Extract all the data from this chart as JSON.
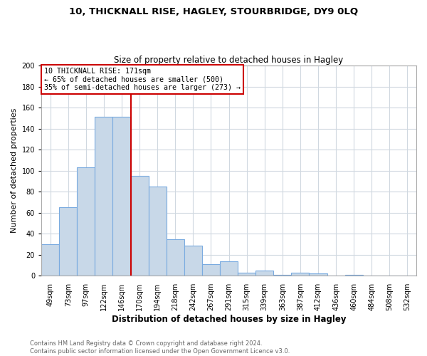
{
  "title1": "10, THICKNALL RISE, HAGLEY, STOURBRIDGE, DY9 0LQ",
  "title2": "Size of property relative to detached houses in Hagley",
  "xlabel": "Distribution of detached houses by size in Hagley",
  "ylabel": "Number of detached properties",
  "bar_color": "#c8d8e8",
  "bar_edge_color": "#7aabe0",
  "bins": [
    "49sqm",
    "73sqm",
    "97sqm",
    "122sqm",
    "146sqm",
    "170sqm",
    "194sqm",
    "218sqm",
    "242sqm",
    "267sqm",
    "291sqm",
    "315sqm",
    "339sqm",
    "363sqm",
    "387sqm",
    "412sqm",
    "436sqm",
    "460sqm",
    "484sqm",
    "508sqm",
    "532sqm"
  ],
  "counts": [
    30,
    65,
    103,
    151,
    151,
    95,
    85,
    35,
    29,
    11,
    14,
    3,
    5,
    1,
    3,
    2,
    0,
    1,
    0,
    0,
    0
  ],
  "annotation_line1": "10 THICKNALL RISE: 171sqm",
  "annotation_line2": "← 65% of detached houses are smaller (500)",
  "annotation_line3": "35% of semi-detached houses are larger (273) →",
  "vline_color": "#cc0000",
  "vline_bin_index": 5,
  "annotation_box_color": "#ffffff",
  "annotation_box_edge": "#cc0000",
  "ylim": [
    0,
    200
  ],
  "yticks": [
    0,
    20,
    40,
    60,
    80,
    100,
    120,
    140,
    160,
    180,
    200
  ],
  "footer1": "Contains HM Land Registry data © Crown copyright and database right 2024.",
  "footer2": "Contains public sector information licensed under the Open Government Licence v3.0.",
  "background_color": "#ffffff",
  "grid_color": "#d0d8e0"
}
